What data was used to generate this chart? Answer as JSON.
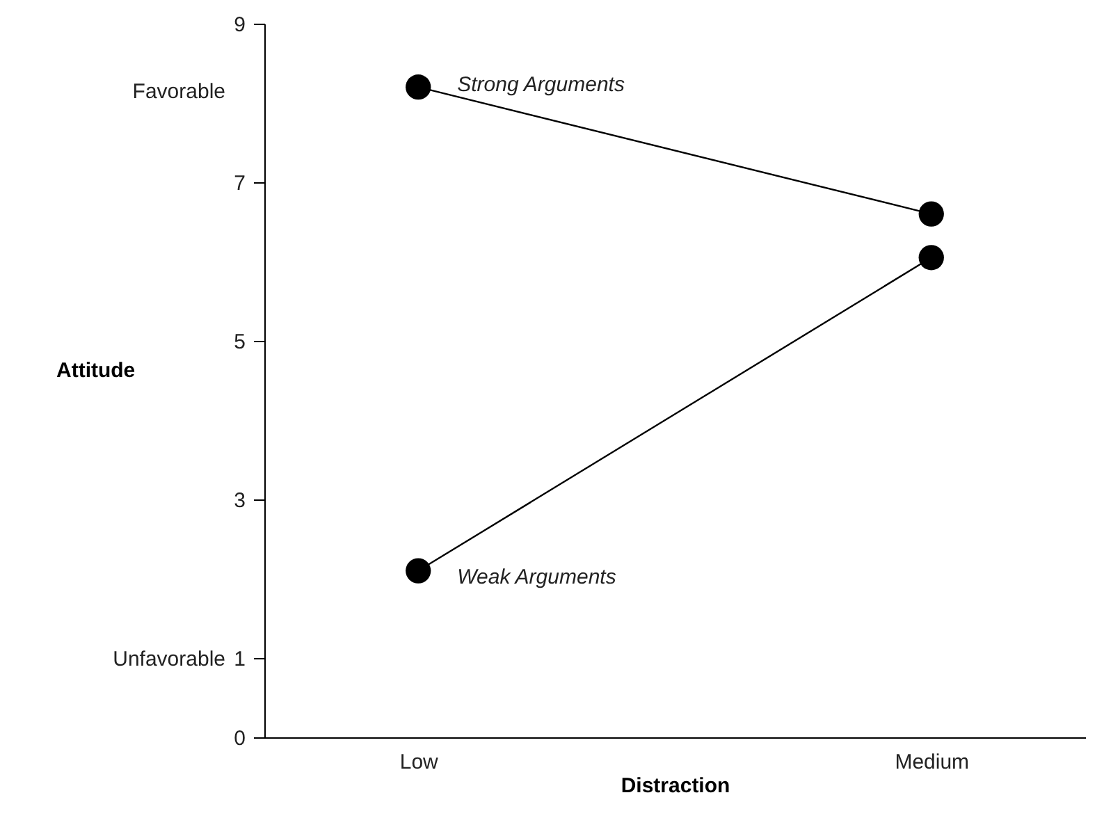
{
  "chart_data": {
    "type": "line",
    "xlabel": "Distraction",
    "ylabel": "Attitude",
    "categories": [
      "Low",
      "Medium"
    ],
    "series": [
      {
        "name": "Strong Arguments",
        "color": "#000000",
        "values": [
          8.2,
          6.6
        ]
      },
      {
        "name": "Weak Arguments",
        "color": "#000000",
        "values": [
          2.1,
          6.05
        ]
      }
    ],
    "ylim": [
      0,
      9
    ],
    "yticks": [
      0,
      1,
      3,
      5,
      7,
      9
    ],
    "annotations": [
      "Favorable",
      "Unfavorable"
    ],
    "marker": "circle",
    "line_style": "solid",
    "grid": false
  }
}
